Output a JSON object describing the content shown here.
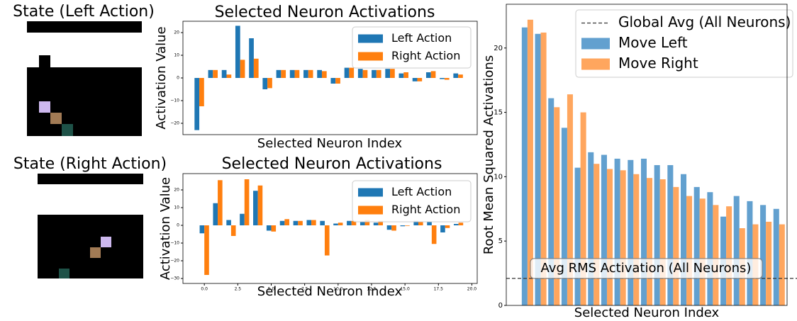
{
  "images": [
    {
      "title": "State (Left Action)"
    },
    {
      "title": "State (Right Action)"
    }
  ],
  "chart_data": [
    {
      "type": "bar",
      "title": "Selected Neuron Activations",
      "x_label": "Selected Neuron Index",
      "y_label": "Activation Value",
      "x": [
        0,
        1,
        2,
        3,
        4,
        5,
        6,
        7,
        8,
        9,
        10,
        11,
        12,
        13,
        14,
        15,
        16,
        17,
        18,
        19
      ],
      "series": [
        {
          "name": "Left Action",
          "color": "#1f77b4",
          "values": [
            -23,
            3.5,
            3.5,
            23,
            17.5,
            -5,
            3.5,
            3.5,
            3.5,
            3.5,
            -2.5,
            4.5,
            4,
            3.5,
            4,
            2,
            -1.5,
            2.5,
            -0.5,
            2
          ]
        },
        {
          "name": "Right Action",
          "color": "#ff7f0e",
          "values": [
            -12.5,
            3.5,
            1.5,
            8,
            8.5,
            -4.5,
            3.5,
            3.5,
            3.5,
            3,
            -2.5,
            4.5,
            3.5,
            3.5,
            4,
            2.5,
            -1.5,
            3,
            -0.8,
            1.5
          ]
        }
      ],
      "xlim": [
        -1.2,
        20.4
      ],
      "ylim": [
        -25,
        25
      ],
      "yticks": [
        {
          "value": -20,
          "label": "−20"
        },
        {
          "value": -10,
          "label": "−10"
        },
        0,
        10,
        20
      ],
      "legend": "upper right"
    },
    {
      "type": "bar",
      "title": "Selected Neuron Activations",
      "x_label": "Selected Neuron Index",
      "y_label": "Activation Value",
      "x": [
        0,
        1,
        2,
        3,
        4,
        5,
        6,
        7,
        8,
        9,
        10,
        11,
        12,
        13,
        14,
        15,
        16,
        17,
        18,
        19
      ],
      "series": [
        {
          "name": "Left Action",
          "color": "#1f77b4",
          "values": [
            -4.5,
            12.5,
            3,
            6.5,
            19.5,
            -3,
            2.5,
            2.5,
            3,
            2.5,
            1,
            2.5,
            2,
            1.5,
            -2.5,
            -0.5,
            2.5,
            2,
            -4,
            0.8
          ]
        },
        {
          "name": "Right Action",
          "color": "#ff7f0e",
          "values": [
            -28,
            25.5,
            -6,
            26,
            22.5,
            -3.5,
            3.5,
            2.5,
            3,
            -17,
            1.5,
            2.5,
            3,
            2.5,
            -3,
            -0.3,
            2,
            -10.5,
            -1.5,
            1.5
          ]
        }
      ],
      "xlim": [
        -1.6,
        20.4
      ],
      "ylim": [
        -32.8,
        29.2
      ],
      "xticks": [
        {
          "value": 0,
          "label": "0.0"
        },
        2.5,
        {
          "value": 5,
          "label": "5.0"
        },
        7.5,
        {
          "value": 10,
          "label": "10.0"
        },
        12.5,
        {
          "value": 15,
          "label": "15.0"
        },
        17.5,
        {
          "value": 20,
          "label": "20.0"
        }
      ],
      "yticks": [
        {
          "value": -30,
          "label": "−30"
        },
        {
          "value": -20,
          "label": "−20"
        },
        {
          "value": -10,
          "label": "−10"
        },
        0,
        10,
        20
      ],
      "legend": "upper right"
    },
    {
      "type": "bar",
      "x_label": "Selected Neuron Index",
      "y_label": "Root Mean Squared Activations",
      "x": [
        0,
        1,
        2,
        3,
        4,
        5,
        6,
        7,
        8,
        9,
        10,
        11,
        12,
        13,
        14,
        15,
        16,
        17,
        18,
        19
      ],
      "series": [
        {
          "name": "Move Left",
          "color": "#62a0cf",
          "values": [
            21.6,
            21.1,
            16.1,
            13.8,
            10.7,
            11.9,
            11.7,
            11.4,
            11.3,
            11.4,
            10.9,
            10.9,
            10.2,
            9.2,
            8.8,
            6.9,
            8.5,
            8.1,
            7.8,
            7.5
          ]
        },
        {
          "name": "Move Right",
          "color": "#ffa65e",
          "values": [
            22.2,
            21.2,
            15.4,
            16.4,
            15.0,
            11.0,
            10.6,
            10.5,
            10.2,
            9.9,
            9.8,
            9.2,
            8.5,
            8.3,
            7.8,
            7.7,
            6.0,
            6.3,
            6.5,
            6.3
          ]
        }
      ],
      "hline": {
        "value": 2.1,
        "label": "Global Avg (All Neurons)"
      },
      "annotation": "Avg RMS Activation (All Neurons)",
      "xlim": [
        -1.6,
        19.6
      ],
      "ylim": [
        0,
        23.4
      ],
      "yticks": [
        0,
        5,
        10,
        15,
        20
      ],
      "legend": "upper right"
    }
  ]
}
